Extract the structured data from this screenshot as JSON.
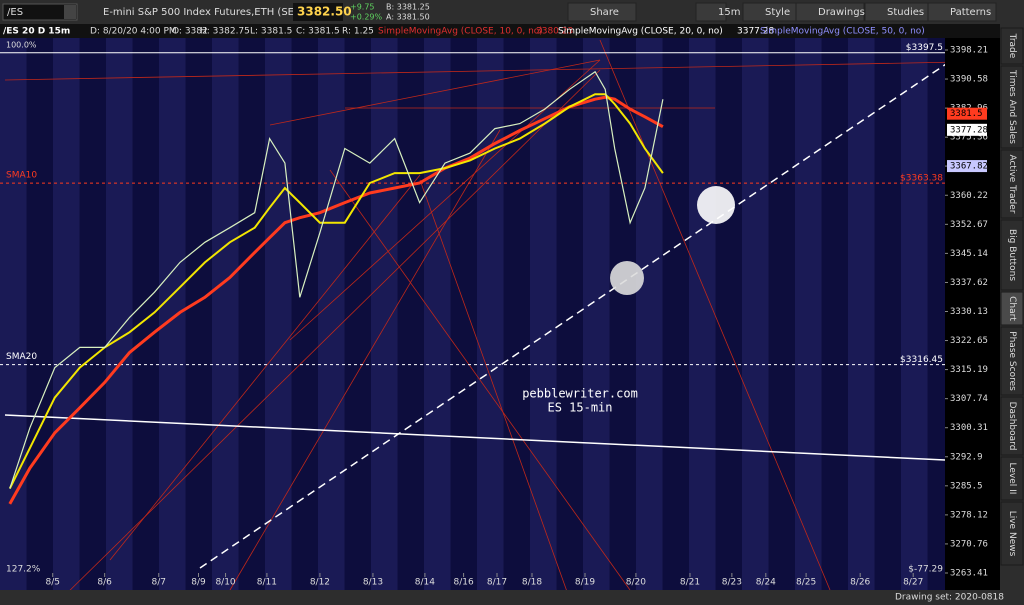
{
  "toolbar": {
    "symbol": "/ES",
    "description": "E-mini S&P 500 Index Futures,ETH (SEP 20)",
    "last": "3382.50",
    "change": "+9.75",
    "change_pct": "+0.29%",
    "bid": "B: 3381.25",
    "ask": "A: 3381.50",
    "buttons": [
      "Share",
      "15m",
      "Style",
      "Drawings",
      "Studies",
      "Patterns"
    ]
  },
  "chart_header": {
    "symbol": "/ES 20 D 15m",
    "date": "D: 8/20/20 4:00 PM",
    "open": "O: 3382",
    "high": "H: 3382.75",
    "low": "L: 3381.5",
    "close": "C: 3381.5",
    "range": "R: 1.25",
    "studies": [
      {
        "name": "SimpleMovingAvg (CLOSE, 10, 0, no)",
        "value": "3380.23",
        "color": "#e03030"
      },
      {
        "name": "SimpleMovingAvg (CLOSE, 20, 0, no)",
        "value": "3377.28",
        "color": "#ffffff"
      },
      {
        "name": "SimpleMovingAvg (CLOSE, 50, 0, no)",
        "color": "#9090ff"
      }
    ]
  },
  "chart_data": {
    "type": "line",
    "log_scale": true,
    "ylim": [
      3263.41,
      3398.21
    ],
    "yticks": [
      3398.21,
      3390.58,
      3382.96,
      3375.36,
      3367.82,
      3360.22,
      3352.67,
      3345.14,
      3337.62,
      3330.13,
      3322.65,
      3315.19,
      3307.74,
      3300.31,
      3292.9,
      3285.5,
      3278.12,
      3270.76,
      3263.41
    ],
    "xlim": [
      -0.9,
      16.83
    ],
    "xticks": [
      {
        "value": 0,
        "label": "8/5"
      },
      {
        "value": 0.98,
        "label": "8/6"
      },
      {
        "value": 2.0,
        "label": "8/7"
      },
      {
        "value": 2.75,
        "label": "8/9"
      },
      {
        "value": 3.26,
        "label": "8/10"
      },
      {
        "value": 4.04,
        "label": "8/11"
      },
      {
        "value": 5.04,
        "label": "8/12"
      },
      {
        "value": 6.04,
        "label": "8/13"
      },
      {
        "value": 7.02,
        "label": "8/14"
      },
      {
        "value": 7.75,
        "label": "8/16"
      },
      {
        "value": 8.38,
        "label": "8/17"
      },
      {
        "value": 9.04,
        "label": "8/18"
      },
      {
        "value": 10.04,
        "label": "8/19"
      },
      {
        "value": 11.0,
        "label": "8/20"
      },
      {
        "value": 12.02,
        "label": "8/21"
      },
      {
        "value": 12.81,
        "label": "8/23"
      },
      {
        "value": 13.45,
        "label": "8/24"
      },
      {
        "value": 14.21,
        "label": "8/25"
      },
      {
        "value": 15.23,
        "label": "8/26"
      },
      {
        "value": 16.23,
        "label": "8/27"
      }
    ],
    "x": [
      -0.81,
      -0.43,
      0.04,
      0.51,
      0.98,
      1.45,
      1.92,
      2.4,
      2.87,
      3.34,
      3.81,
      4.09,
      4.38,
      4.66,
      5.04,
      5.51,
      5.98,
      6.45,
      6.92,
      7.4,
      7.87,
      8.34,
      8.81,
      9.28,
      9.75,
      10.23,
      10.42,
      10.6,
      10.89,
      11.17,
      11.51
    ],
    "series": [
      {
        "color": "#ff3b1f",
        "values": [
          3280.9,
          3290.0,
          3299.0,
          3305.4,
          3311.9,
          3319.6,
          3324.8,
          3329.9,
          3333.8,
          3338.9,
          3345.4,
          3349.2,
          3353.1,
          3354.4,
          3355.7,
          3358.3,
          3360.8,
          3362.1,
          3363.4,
          3367.3,
          3369.9,
          3373.7,
          3377.1,
          3380.2,
          3383.3,
          3385.3,
          3385.8,
          3385.3,
          3382.7,
          3380.7,
          3378.1
        ]
      },
      {
        "color": "#f2e600",
        "values": [
          3284.8,
          3295.1,
          3308.0,
          3315.7,
          3320.9,
          3324.8,
          3329.9,
          3336.4,
          3342.8,
          3348.0,
          3351.8,
          3357.0,
          3362.1,
          3358.3,
          3353.1,
          3353.1,
          3363.4,
          3366.0,
          3366.0,
          3367.3,
          3369.3,
          3372.4,
          3375.0,
          3378.9,
          3383.3,
          3386.6,
          3386.6,
          3384.0,
          3378.9,
          3372.4,
          3366.0
        ]
      },
      {
        "color": "#d8f0c0",
        "values": [
          3284.8,
          3300.3,
          3315.7,
          3320.9,
          3320.9,
          3328.6,
          3335.1,
          3342.8,
          3348.0,
          3351.8,
          3355.7,
          3375.0,
          3368.6,
          3333.8,
          3350.5,
          3372.4,
          3368.6,
          3375.0,
          3358.3,
          3368.6,
          3371.2,
          3377.6,
          3378.9,
          3382.7,
          3387.9,
          3392.5,
          3387.9,
          3372.4,
          3353.1,
          3362.1,
          3385.3
        ]
      }
    ],
    "levels": [
      {
        "value": 3397.5,
        "value_label": "$3397.5",
        "color": "#ffffff"
      },
      {
        "label": "SMA10",
        "value": 3363.38,
        "value_label": "$3363.38",
        "color": "#ff3b1f"
      },
      {
        "label": "SMA20",
        "value": 3316.45,
        "value_label": "$3316.45",
        "color": "#ffffff"
      }
    ],
    "price_tags": [
      {
        "value": 3381.5,
        "color": "#ff3b1f"
      },
      {
        "value": 3377.28,
        "color": "#ffffff"
      },
      {
        "value": 3367.82,
        "color": "#c8c8ff"
      }
    ],
    "corner_labels": {
      "top_left": "100.0%",
      "bottom_left": "127.2%",
      "bottom_right": "$-77.29"
    },
    "watermark": [
      "pebblewriter.com",
      "ES 15-min"
    ]
  },
  "side_tabs": [
    "Trade",
    "Times And Sales",
    "Active Trader",
    "Big Buttons",
    "Chart",
    "Phase Scores",
    "Dashboard",
    "Level II",
    "Live News"
  ],
  "status_bar": "Drawing set: 2020-0818"
}
